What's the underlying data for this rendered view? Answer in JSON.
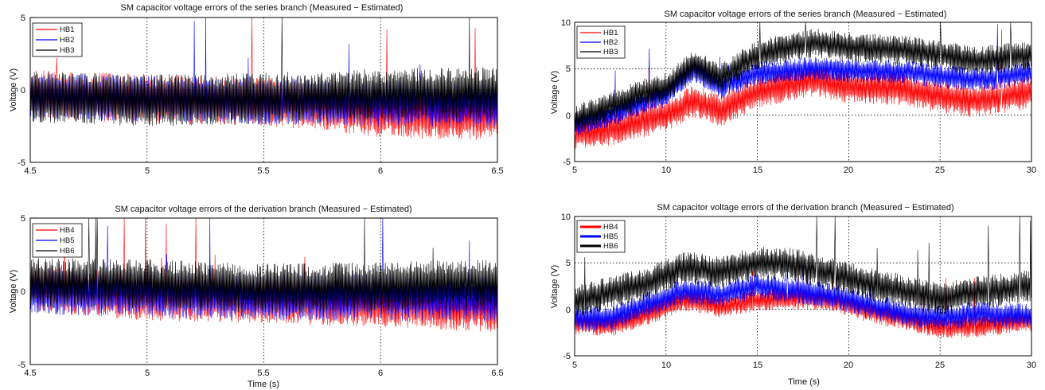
{
  "chart_data": [
    {
      "type": "line",
      "title": "SM capacitor voltage errors of the series branch (Measured − Estimated)",
      "xlabel": "",
      "ylabel": "Voltage (V)",
      "xlim": [
        4.5,
        6.5
      ],
      "ylim": [
        -5,
        5
      ],
      "xticks": [
        "4.5",
        "5",
        "5.5",
        "6",
        "6.5"
      ],
      "yticks": [
        "-5",
        "0",
        "5"
      ],
      "legend_position": "top-left",
      "series": [
        {
          "name": "HB1",
          "color": "#ff0000",
          "x": [
            4.5,
            5.0,
            5.5,
            5.8,
            6.0,
            6.5
          ],
          "values": [
            -0.3,
            -0.6,
            -0.8,
            -1.2,
            -1.6,
            -1.8
          ],
          "band": 1.7
        },
        {
          "name": "HB2",
          "color": "#0000ff",
          "x": [
            4.5,
            5.0,
            5.5,
            6.0,
            6.5
          ],
          "values": [
            -0.4,
            -0.6,
            -0.8,
            -0.9,
            -1.0
          ],
          "band": 1.6
        },
        {
          "name": "HB3",
          "color": "#000000",
          "x": [
            4.5,
            5.0,
            5.5,
            6.0,
            6.5
          ],
          "values": [
            -0.5,
            -0.7,
            -0.6,
            -0.3,
            -0.2
          ],
          "band": 1.8
        }
      ]
    },
    {
      "type": "line",
      "title": "SM capacitor voltage errors of the series branch (Measured − Estimated)",
      "xlabel": "",
      "ylabel": "Voltage (V)",
      "xlim": [
        5,
        30
      ],
      "ylim": [
        -5,
        10
      ],
      "xticks": [
        "5",
        "10",
        "15",
        "20",
        "25",
        "30"
      ],
      "yticks": [
        "-5",
        "0",
        "5",
        "10"
      ],
      "legend_position": "top-left",
      "series": [
        {
          "name": "HB1",
          "color": "#ff0000",
          "x": [
            5,
            7,
            9,
            10,
            11.5,
            13,
            15,
            18,
            20,
            23,
            25,
            27,
            30
          ],
          "values": [
            -2.0,
            -1.5,
            -0.5,
            0.0,
            1.5,
            0.5,
            2.5,
            3.8,
            3.0,
            2.8,
            2.0,
            1.5,
            2.5
          ],
          "band": 1.8
        },
        {
          "name": "HB2",
          "color": "#0000ff",
          "x": [
            5,
            7,
            9,
            10,
            11.5,
            13,
            15,
            18,
            20,
            23,
            25,
            27,
            30
          ],
          "values": [
            -1.0,
            0.0,
            1.5,
            2.0,
            5.0,
            3.0,
            4.5,
            5.0,
            4.8,
            4.6,
            4.2,
            3.8,
            4.5
          ],
          "band": 1.3
        },
        {
          "name": "HB3",
          "color": "#000000",
          "x": [
            5,
            7,
            9,
            10,
            11.5,
            13,
            15,
            18,
            20,
            23,
            25,
            27,
            30
          ],
          "values": [
            -0.5,
            1.0,
            2.5,
            3.0,
            5.5,
            4.0,
            6.5,
            7.8,
            7.3,
            7.0,
            6.5,
            5.8,
            6.5
          ],
          "band": 1.6
        }
      ]
    },
    {
      "type": "line",
      "title": "SM capacitor voltage errors of the derivation branch (Measured − Estimated)",
      "xlabel": "Time (s)",
      "ylabel": "Voltage (V)",
      "xlim": [
        4.5,
        6.5
      ],
      "ylim": [
        -5,
        5
      ],
      "xticks": [
        "4.5",
        "5",
        "5.5",
        "6",
        "6.5"
      ],
      "yticks": [
        "-5",
        "0",
        "5"
      ],
      "legend_position": "top-left",
      "series": [
        {
          "name": "HB4",
          "color": "#ff0000",
          "x": [
            4.5,
            5.0,
            5.5,
            6.0,
            6.5
          ],
          "values": [
            0.2,
            -0.4,
            -0.6,
            -0.9,
            -1.2
          ],
          "band": 1.6
        },
        {
          "name": "HB5",
          "color": "#0000ff",
          "x": [
            4.5,
            5.0,
            5.5,
            6.0,
            6.5
          ],
          "values": [
            0.0,
            -0.2,
            -0.4,
            -0.4,
            -0.5
          ],
          "band": 1.6
        },
        {
          "name": "HB6",
          "color": "#000000",
          "x": [
            4.5,
            5.0,
            5.5,
            6.0,
            6.5
          ],
          "values": [
            0.6,
            0.5,
            0.2,
            0.3,
            0.5
          ],
          "band": 1.7
        }
      ]
    },
    {
      "type": "line",
      "title": "SM capacitor voltage errors of the derivation branch (Measured − Estimated)",
      "xlabel": "Time (s)",
      "ylabel": "Voltage (V)",
      "xlim": [
        5,
        30
      ],
      "ylim": [
        -5,
        10
      ],
      "xticks": [
        "5",
        "10",
        "15",
        "20",
        "25",
        "30"
      ],
      "yticks": [
        "-5",
        "0",
        "5",
        "10"
      ],
      "legend_position": "top-left",
      "series": [
        {
          "name": "HB4",
          "color": "#ff0000",
          "x": [
            5,
            7,
            9,
            11,
            13,
            15,
            17,
            19,
            21,
            23,
            25,
            27,
            30
          ],
          "values": [
            -1.5,
            -1.8,
            -0.5,
            1.0,
            0.3,
            1.0,
            1.2,
            1.0,
            -0.2,
            -1.0,
            -2.0,
            -1.8,
            -1.2
          ],
          "band": 1.2
        },
        {
          "name": "HB5",
          "color": "#0000ff",
          "x": [
            5,
            7,
            9,
            11,
            13,
            15,
            17,
            19,
            21,
            23,
            25,
            27,
            30
          ],
          "values": [
            -1.0,
            -1.0,
            0.5,
            2.0,
            1.5,
            2.5,
            2.0,
            1.5,
            0.5,
            -0.5,
            -1.0,
            -0.5,
            -0.8
          ],
          "band": 1.4
        },
        {
          "name": "HB6",
          "color": "#000000",
          "x": [
            5,
            7,
            9,
            11,
            13,
            15,
            17,
            19,
            21,
            23,
            25,
            27,
            30
          ],
          "values": [
            0.8,
            1.8,
            2.8,
            4.5,
            4.0,
            5.0,
            4.8,
            3.8,
            2.8,
            2.0,
            1.0,
            1.8,
            2.5
          ],
          "band": 1.8
        }
      ]
    }
  ]
}
